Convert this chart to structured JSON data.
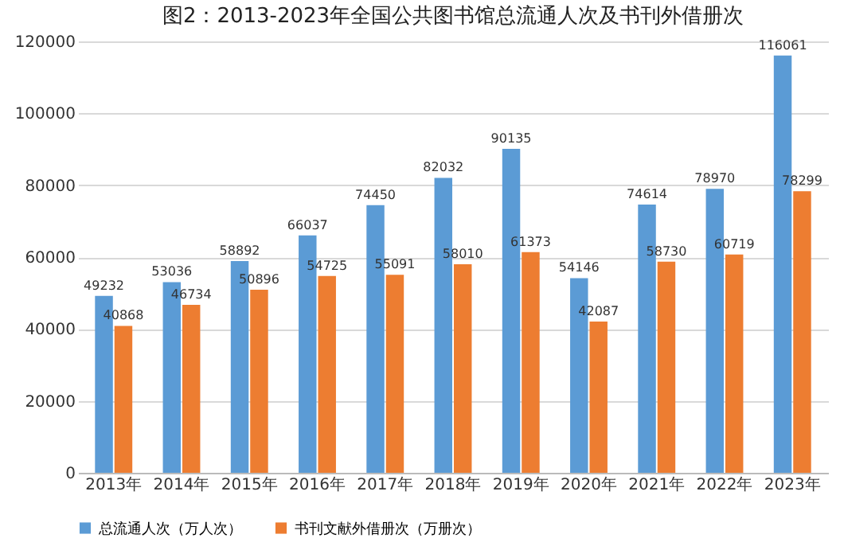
{
  "chart_data": {
    "type": "bar",
    "title": "图2：2013-2023年全国公共图书馆总流通人次及书刊外借册次",
    "categories": [
      "2013年",
      "2014年",
      "2015年",
      "2016年",
      "2017年",
      "2018年",
      "2019年",
      "2020年",
      "2021年",
      "2022年",
      "2023年"
    ],
    "series": [
      {
        "name": "总流通人次（万人次）",
        "color": "#5b9bd5",
        "values": [
          49232,
          53036,
          58892,
          66037,
          74450,
          82032,
          90135,
          54146,
          74614,
          78970,
          116061
        ]
      },
      {
        "name": "书刊文献外借册次（万册次）",
        "color": "#ed7d31",
        "values": [
          40868,
          46734,
          50896,
          54725,
          55091,
          58010,
          61373,
          42087,
          58730,
          60719,
          78299
        ]
      }
    ],
    "ylim": [
      0,
      120000
    ],
    "yticks": [
      0,
      20000,
      40000,
      60000,
      80000,
      100000,
      120000
    ],
    "grid": "y",
    "legend": "bottom",
    "data_labels": true
  }
}
